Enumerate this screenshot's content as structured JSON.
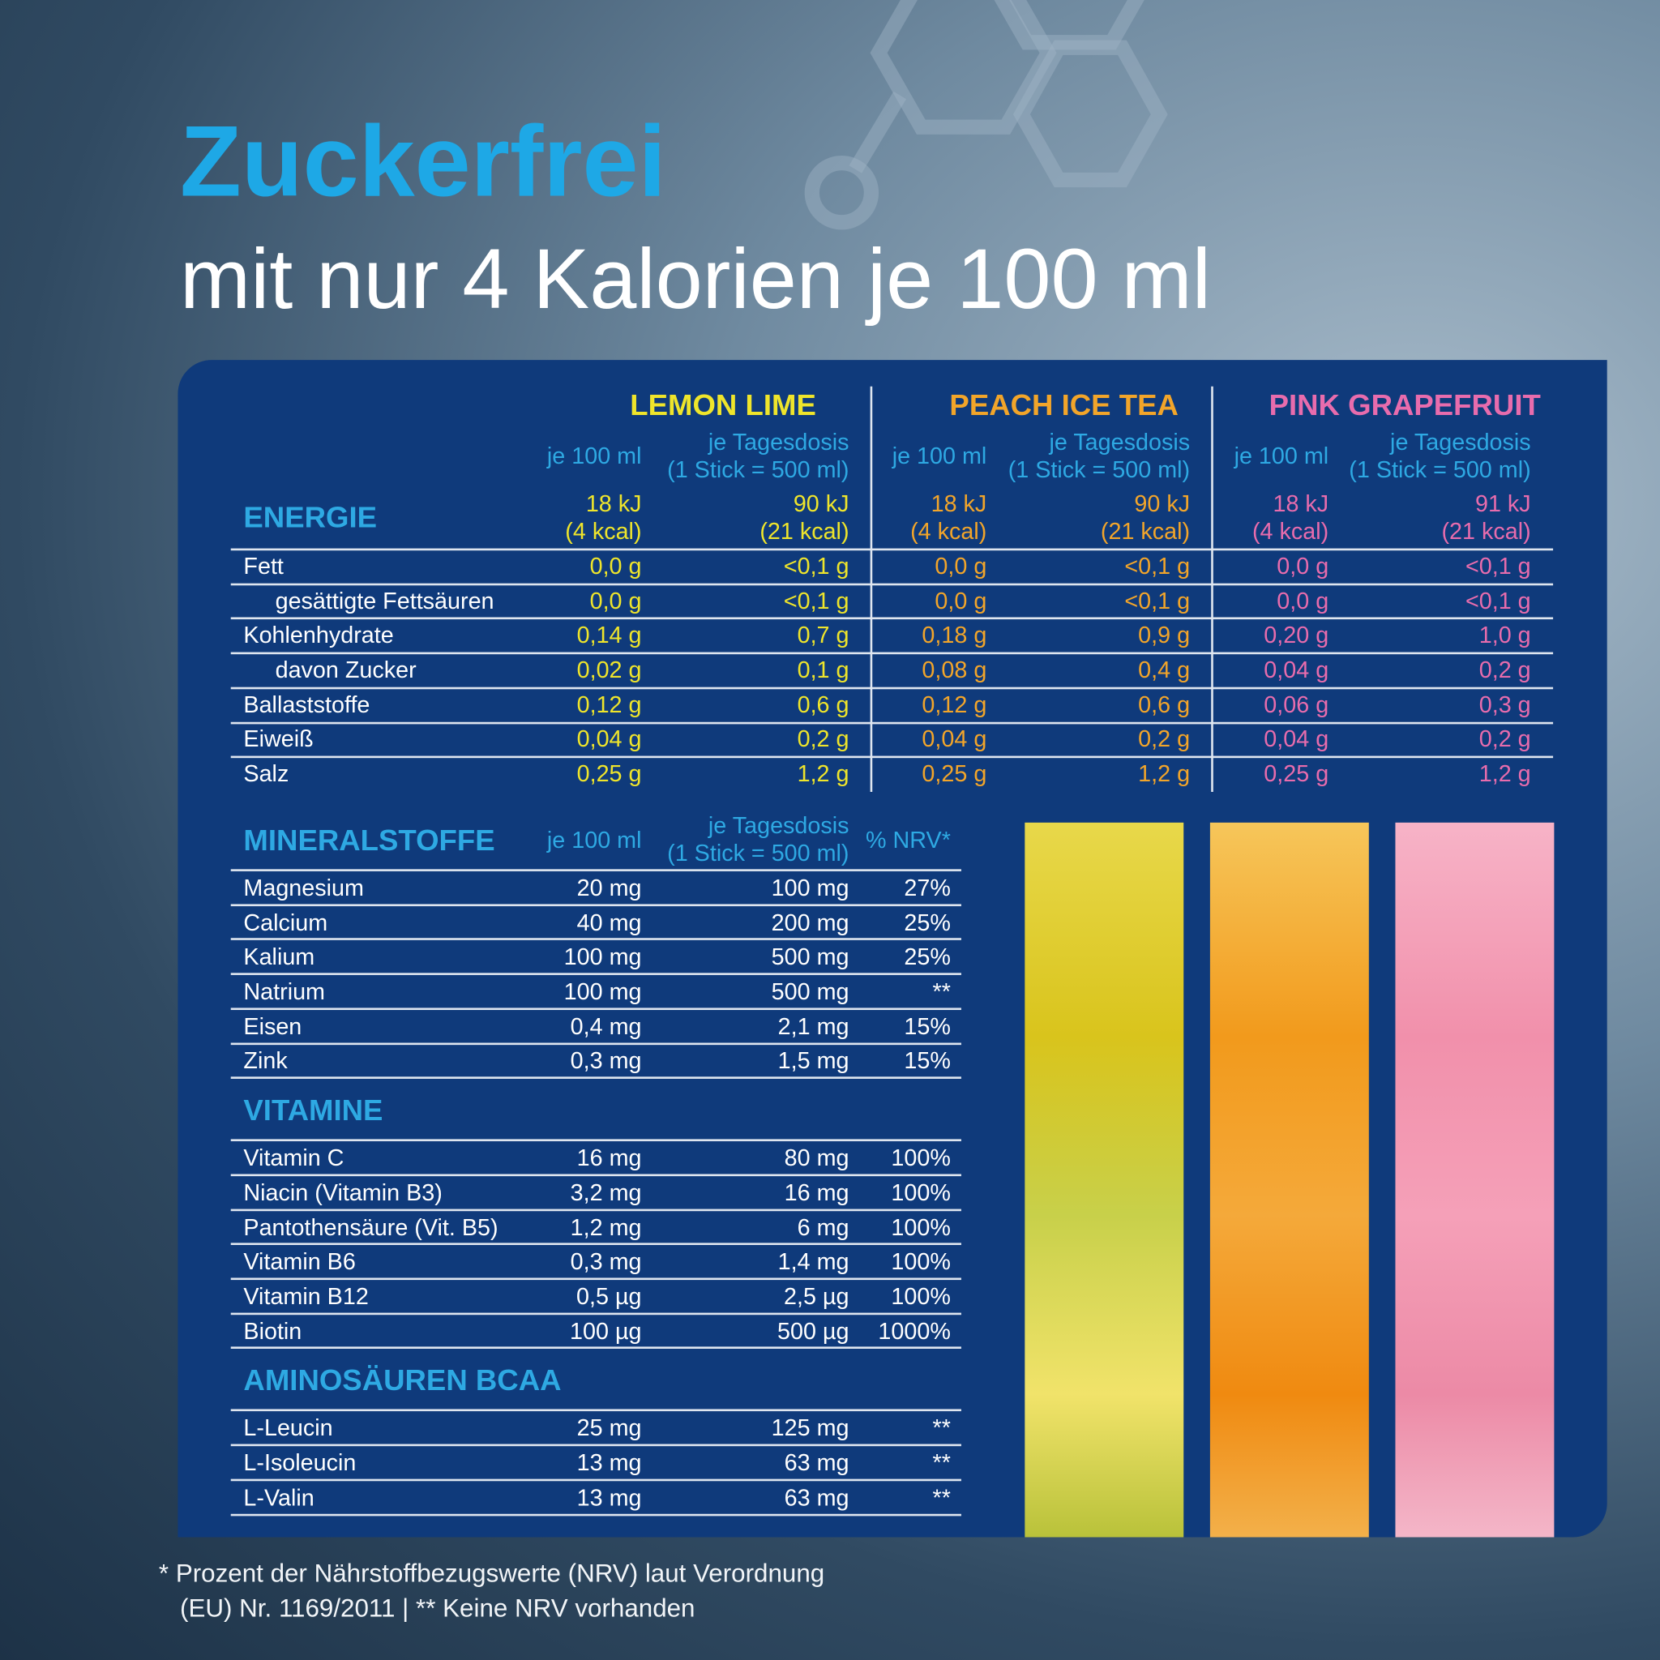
{
  "header": {
    "title": "Zuckerfrei",
    "subtitle": "mit nur 4 Kalorien je 100 ml"
  },
  "nutrition": {
    "energy_label": "ENERGIE",
    "products": [
      {
        "name": "LEMON LIME",
        "color": "#efe52b",
        "per_100ml": "je 100 ml",
        "daily": [
          "je Tagesdosis",
          "(1 Stick = 500 ml)"
        ],
        "energy_100ml": [
          "18 kJ",
          "(4 kcal)"
        ],
        "energy_daily": [
          "90 kJ",
          "(21 kcal)"
        ]
      },
      {
        "name": "PEACH ICE TEA",
        "color": "#f2a52a",
        "per_100ml": "je 100 ml",
        "daily": [
          "je Tagesdosis",
          "(1 Stick = 500 ml)"
        ],
        "energy_100ml": [
          "18 kJ",
          "(4 kcal)"
        ],
        "energy_daily": [
          "90 kJ",
          "(21 kcal)"
        ]
      },
      {
        "name": "PINK GRAPEFRUIT",
        "color": "#e86cad",
        "per_100ml": "je 100 ml",
        "daily": [
          "je Tagesdosis",
          "(1 Stick = 500 ml)"
        ],
        "energy_100ml": [
          "18 kJ",
          "(4 kcal)"
        ],
        "energy_daily": [
          "91 kJ",
          "(21 kcal)"
        ]
      }
    ],
    "rows": [
      {
        "label": "Fett",
        "indent": false,
        "values": [
          "0,0 g",
          "<0,1 g",
          "0,0 g",
          "<0,1 g",
          "0,0 g",
          "<0,1 g"
        ]
      },
      {
        "label": "gesättigte Fettsäuren",
        "indent": true,
        "values": [
          "0,0 g",
          "<0,1 g",
          "0,0 g",
          "<0,1 g",
          "0,0 g",
          "<0,1 g"
        ]
      },
      {
        "label": "Kohlenhydrate",
        "indent": false,
        "values": [
          "0,14 g",
          "0,7 g",
          "0,18 g",
          "0,9 g",
          "0,20 g",
          "1,0 g"
        ]
      },
      {
        "label": "davon Zucker",
        "indent": true,
        "values": [
          "0,02 g",
          "0,1 g",
          "0,08 g",
          "0,4 g",
          "0,04 g",
          "0,2 g"
        ]
      },
      {
        "label": "Ballaststoffe",
        "indent": false,
        "values": [
          "0,12 g",
          "0,6 g",
          "0,12 g",
          "0,6 g",
          "0,06 g",
          "0,3 g"
        ]
      },
      {
        "label": "Eiweiß",
        "indent": false,
        "values": [
          "0,04 g",
          "0,2 g",
          "0,04 g",
          "0,2 g",
          "0,04 g",
          "0,2 g"
        ]
      },
      {
        "label": "Salz",
        "indent": false,
        "values": [
          "0,25 g",
          "1,2 g",
          "0,25 g",
          "1,2 g",
          "0,25 g",
          "1,2 g"
        ]
      }
    ]
  },
  "sections": [
    {
      "title": "MINERALSTOFFE",
      "header": [
        "je 100 ml",
        [
          "je Tagesdosis",
          "(1 Stick = 500 ml)"
        ],
        "% NRV*"
      ],
      "rows": [
        [
          "Magnesium",
          "20 mg",
          "100 mg",
          "27%"
        ],
        [
          "Calcium",
          "40 mg",
          "200 mg",
          "25%"
        ],
        [
          "Kalium",
          "100 mg",
          "500 mg",
          "25%"
        ],
        [
          "Natrium",
          "100 mg",
          "500 mg",
          "**"
        ],
        [
          "Eisen",
          "0,4 mg",
          "2,1 mg",
          "15%"
        ],
        [
          "Zink",
          "0,3 mg",
          "1,5 mg",
          "15%"
        ]
      ]
    },
    {
      "title": "VITAMINE",
      "rows": [
        [
          "Vitamin C",
          "16 mg",
          "80 mg",
          "100%"
        ],
        [
          "Niacin (Vitamin B3)",
          "3,2 mg",
          "16 mg",
          "100%"
        ],
        [
          "Pantothensäure (Vit. B5)",
          "1,2 mg",
          "6 mg",
          "100%"
        ],
        [
          "Vitamin B6",
          "0,3 mg",
          "1,4 mg",
          "100%"
        ],
        [
          "Vitamin B12",
          "0,5 µg",
          "2,5 µg",
          "100%"
        ],
        [
          "Biotin",
          "100 µg",
          "500 µg",
          "1000%"
        ]
      ]
    },
    {
      "title": "AMINOSÄUREN BCAA",
      "rows": [
        [
          "L-Leucin",
          "25 mg",
          "125 mg",
          "**"
        ],
        [
          "L-Isoleucin",
          "13 mg",
          "63 mg",
          "**"
        ],
        [
          "L-Valin",
          "13 mg",
          "63 mg",
          "**"
        ]
      ]
    }
  ],
  "footnote": [
    "* Prozent der Nährstoffbezugswerte (NRV) laut Verordnung",
    "(EU) Nr. 1169/2011 | ** Keine NRV vorhanden"
  ]
}
